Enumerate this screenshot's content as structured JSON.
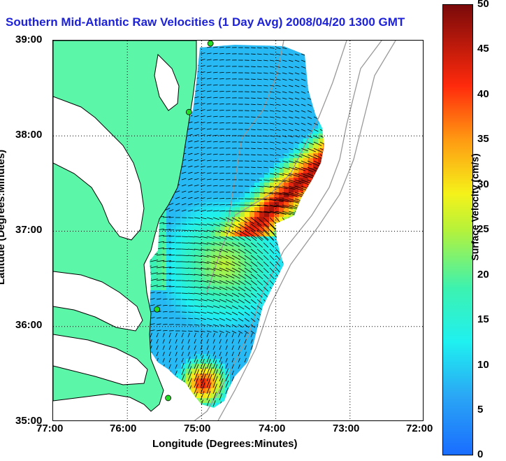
{
  "title": "Southern Mid-Atlantic Raw Velocities (1 Day Avg) 2008/04/20 1300 GMT",
  "axes": {
    "xlabel": "Longitude (Degrees:Minutes)",
    "ylabel": "Latitude (Degrees:Minutes)",
    "x_ticks": [
      "77:00",
      "76:00",
      "75:00",
      "74:00",
      "73:00",
      "72:00"
    ],
    "y_ticks": [
      "39:00",
      "38:00",
      "37:00",
      "36:00",
      "35:00"
    ]
  },
  "colorbar": {
    "label": "Surface Velocity (cm/s)",
    "ticks": [
      "50",
      "45",
      "40",
      "35",
      "30",
      "25",
      "20",
      "15",
      "10",
      "5",
      "0"
    ],
    "min": 0,
    "max": 50
  },
  "colors": {
    "land": "#5cf6a8",
    "title": "#1d22d8",
    "coast": "#000000",
    "bathymetry": "#999999",
    "stations": "#22dd22"
  },
  "map_extent": {
    "lon": [
      -77,
      -72
    ],
    "lat": [
      35,
      39
    ]
  },
  "stations": [
    {
      "lon": -74.88,
      "lat": 38.97
    },
    {
      "lon": -75.17,
      "lat": 38.25
    },
    {
      "lon": -75.6,
      "lat": 36.18
    },
    {
      "lon": -75.45,
      "lat": 35.25
    }
  ]
}
